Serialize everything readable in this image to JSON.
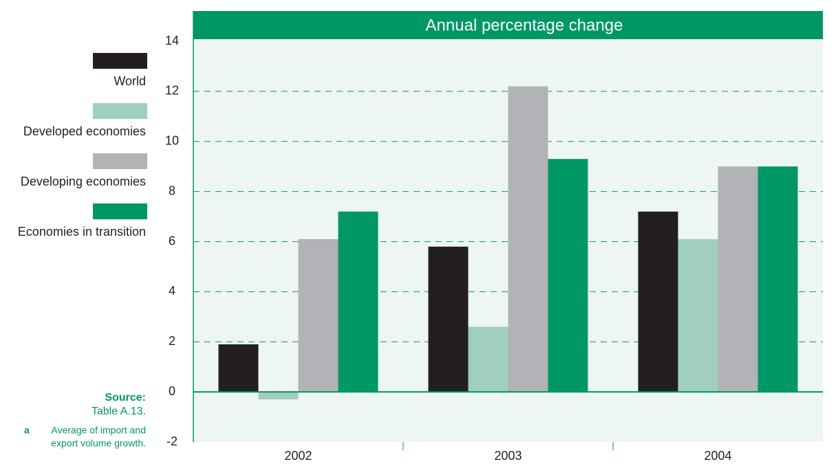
{
  "chart_data": {
    "type": "bar",
    "title": "Annual percentage change",
    "categories": [
      "2002",
      "2003",
      "2004"
    ],
    "series": [
      {
        "name": "World",
        "color": "#231f20",
        "values": [
          1.9,
          5.8,
          7.2
        ]
      },
      {
        "name": "Developed economies",
        "color": "#a0cfbe",
        "values": [
          -0.3,
          2.6,
          6.1
        ]
      },
      {
        "name": "Developing economies",
        "color": "#b1b3b6",
        "values": [
          6.1,
          12.2,
          9.0
        ]
      },
      {
        "name": "Economies in transition",
        "color": "#009767",
        "values": [
          7.2,
          9.3,
          9.0
        ]
      }
    ],
    "ylim": [
      -2,
      14
    ],
    "yticks": [
      -2,
      0,
      2,
      4,
      6,
      8,
      10,
      12,
      14
    ],
    "grid": true,
    "source_label": "Source:",
    "source": "Table A.13.",
    "footnote_marker": "a",
    "footnote": [
      "Average of import and",
      "export volume growth."
    ]
  }
}
